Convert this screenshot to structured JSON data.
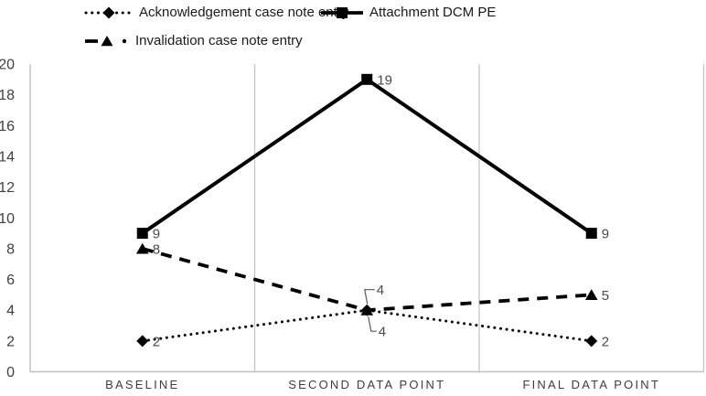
{
  "chart_data": {
    "type": "line",
    "title": "",
    "categories": [
      "BASELINE",
      "SECOND DATA POINT",
      "FINAL DATA POINT"
    ],
    "series": [
      {
        "name": "Acknowledgement case note entry",
        "marker": "diamond",
        "line_style": "dotted",
        "values": [
          2,
          4,
          2
        ]
      },
      {
        "name": "Attachment DCM PE",
        "marker": "square",
        "line_style": "solid",
        "values": [
          9,
          19,
          9
        ]
      },
      {
        "name": "Invalidation case note entry",
        "marker": "triangle",
        "line_style": "dashed",
        "values": [
          8,
          4,
          5
        ]
      }
    ],
    "ylim": [
      0,
      20
    ],
    "yticks": [
      0,
      2,
      4,
      6,
      8,
      10,
      12,
      14,
      16,
      18,
      20
    ],
    "grid": "vertical category separators and right border",
    "legend_position": "top-left, two rows",
    "data_labels": "value shown right of each point",
    "moved_labels": [
      {
        "series_index": 2,
        "point_index": 1,
        "side": "above"
      },
      {
        "series_index": 0,
        "point_index": 1,
        "side": "below"
      }
    ],
    "colors": {
      "series": "#000000",
      "gridline": "#c6c6c6",
      "axis": "#bfbfbf",
      "tick_text": "#404040",
      "category_text": "#3d3d3d",
      "data_label_text": "#4a4a4a",
      "legend_text": "#1a1a1a",
      "leader_line": "#595959"
    }
  }
}
